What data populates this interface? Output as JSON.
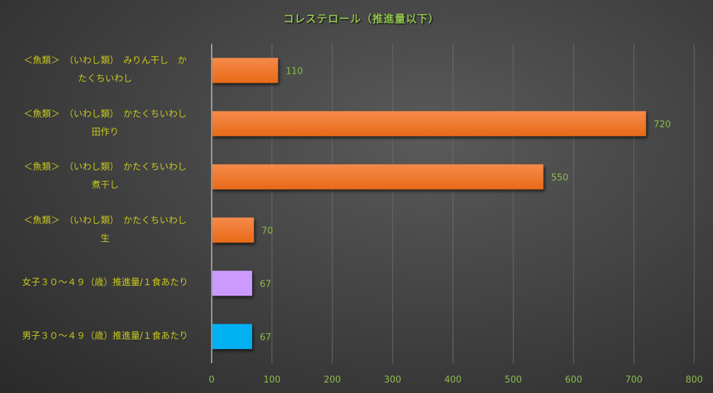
{
  "chart_data": {
    "type": "bar",
    "orientation": "horizontal",
    "title": "コレステロール（推進量以下）",
    "categories": [
      "＜魚類＞　（いわし類）　みりん干し　か\nたくちいわし",
      "＜魚類＞　（いわし類）　かたくちいわし\n田作り",
      "＜魚類＞　（いわし類）　かたくちいわし\n煮干し",
      "＜魚類＞　（いわし類）　かたくちいわし\n生",
      "女子３０～４９（歳）推進量/１食あたり",
      "男子３０～４９（歳）推進量/１食あたり"
    ],
    "values": [
      110,
      720,
      550,
      70,
      67,
      67
    ],
    "data_labels": [
      "110",
      "720",
      "550",
      "70",
      "67",
      "67"
    ],
    "bar_colors": [
      "#f07428",
      "#f07428",
      "#f07428",
      "#f07428",
      "#cc99ff",
      "#00b0f0"
    ],
    "xlim": [
      0,
      800
    ],
    "xticks": [
      0,
      100,
      200,
      300,
      400,
      500,
      600,
      700,
      800
    ],
    "xtick_labels": [
      "0",
      "100",
      "200",
      "300",
      "400",
      "500",
      "600",
      "700",
      "800"
    ],
    "grid": true,
    "xlabel": "",
    "ylabel": "",
    "legend": "none"
  }
}
